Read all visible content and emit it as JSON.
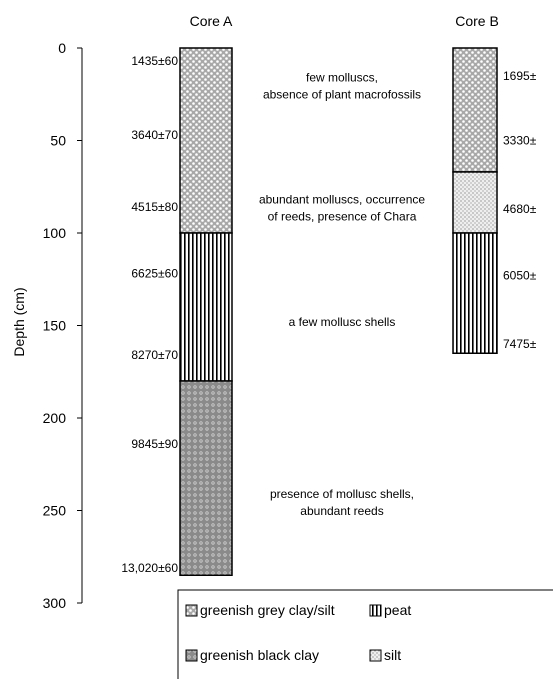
{
  "axis": {
    "label": "Depth (cm)",
    "range": [
      0,
      300
    ],
    "ticks": [
      0,
      50,
      100,
      150,
      200,
      250,
      300
    ]
  },
  "cores": [
    {
      "name": "Core A",
      "layers": [
        {
          "top": 0,
          "bottom": 100,
          "lithology": "greenish grey clay/silt"
        },
        {
          "top": 100,
          "bottom": 180,
          "lithology": "peat"
        },
        {
          "top": 180,
          "bottom": 285,
          "lithology": "greenish black clay"
        }
      ],
      "dates": [
        {
          "depth": 7,
          "label": "1435±60"
        },
        {
          "depth": 47,
          "label": "3640±70"
        },
        {
          "depth": 86,
          "label": "4515±80"
        },
        {
          "depth": 122,
          "label": "6625±60"
        },
        {
          "depth": 166,
          "label": "8270±70"
        },
        {
          "depth": 214,
          "label": "9845±90"
        },
        {
          "depth": 281,
          "label": "13,020±60"
        }
      ]
    },
    {
      "name": "Core B",
      "layers": [
        {
          "top": 0,
          "bottom": 67,
          "lithology": "greenish grey clay/silt"
        },
        {
          "top": 67,
          "bottom": 100,
          "lithology": "silt"
        },
        {
          "top": 100,
          "bottom": 165,
          "lithology": "peat"
        }
      ],
      "dates": [
        {
          "depth": 15,
          "label": "1695±"
        },
        {
          "depth": 50,
          "label": "3330±"
        },
        {
          "depth": 87,
          "label": "4680±"
        },
        {
          "depth": 123,
          "label": "6050±"
        },
        {
          "depth": 160,
          "label": "7475±"
        }
      ]
    }
  ],
  "annotations": [
    {
      "depth_line1": 16,
      "line1": "few molluscs,",
      "line2": "absence of plant macrofossils"
    },
    {
      "depth_line1": 82,
      "line1": "abundant molluscs, occurrence",
      "line2": "of reeds, presence of Chara"
    },
    {
      "depth_line1": 148,
      "line1": "a few mollusc shells",
      "line2": ""
    },
    {
      "depth_line1": 241,
      "line1": "presence of mollusc shells,",
      "line2": "abundant reeds"
    }
  ],
  "legend": {
    "items": [
      {
        "label": "greenish grey clay/silt",
        "lithology": "greenish grey clay/silt"
      },
      {
        "label": "peat",
        "lithology": "peat"
      },
      {
        "label": "greenish black clay",
        "lithology": "greenish black clay"
      },
      {
        "label": "silt",
        "lithology": "silt"
      }
    ]
  }
}
